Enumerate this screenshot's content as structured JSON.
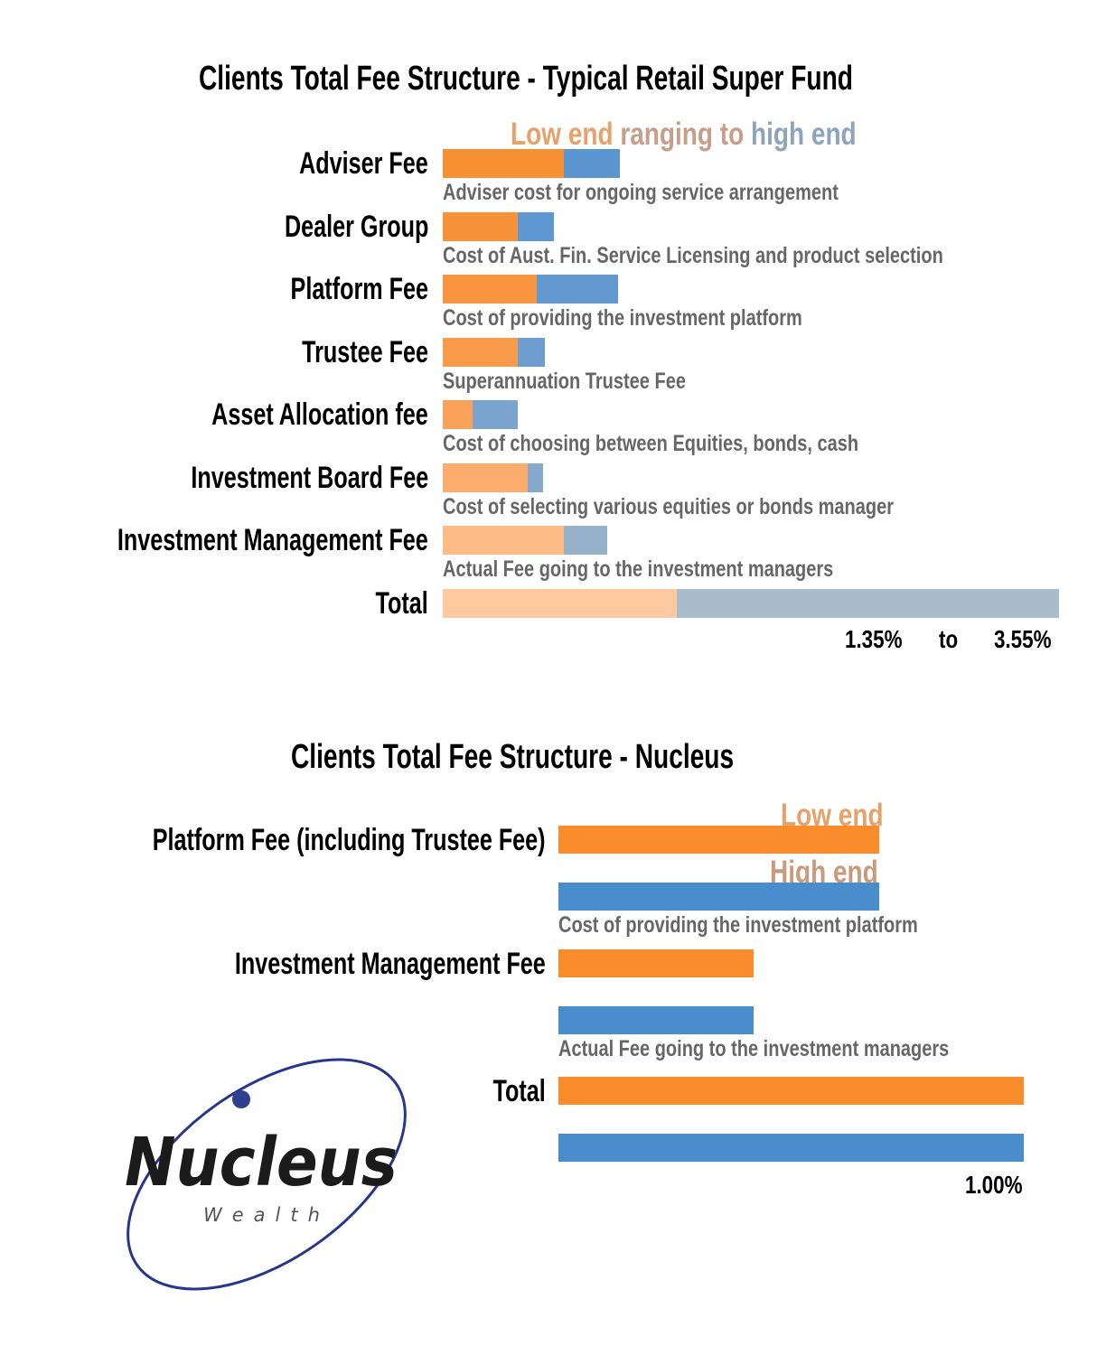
{
  "chart_data": [
    {
      "type": "bar",
      "title": "Clients Total Fee Structure - Typical Retail Super Fund",
      "legend": {
        "low_label": "Low end",
        "connector": "ranging to",
        "high_label": "high end",
        "placement": "top"
      },
      "series_colors": {
        "low": "#f78f33",
        "high": "#5b9bd5"
      },
      "axis_range_percent": [
        0,
        3.55
      ],
      "rows": [
        {
          "label": "Adviser Fee",
          "description": "Adviser cost for ongoing service arrangement",
          "low": 0.7,
          "high": 1.02,
          "low_color": "#f78f33",
          "high_color": "#5b95d0"
        },
        {
          "label": "Dealer Group",
          "description": "Cost of Aust. Fin. Service  Licensing and product selection",
          "low": 0.43,
          "high": 0.64,
          "low_color": "#f8923a",
          "high_color": "#5e98d2"
        },
        {
          "label": "Platform Fee",
          "description": "Cost of providing the investment platform",
          "low": 0.54,
          "high": 1.01,
          "low_color": "#f99440",
          "high_color": "#6499d0"
        },
        {
          "label": "Trustee Fee",
          "description": "Superannuation Trustee Fee",
          "low": 0.43,
          "high": 0.59,
          "low_color": "#fa9a4b",
          "high_color": "#6e9ecf"
        },
        {
          "label": "Asset Allocation fee",
          "description": "Cost of choosing between Equities, bonds, cash",
          "low": 0.17,
          "high": 0.43,
          "low_color": "#fba25a",
          "high_color": "#7aa4cd"
        },
        {
          "label": "Investment Board Fee",
          "description": "Cost of selecting various equities or bonds manager",
          "low": 0.49,
          "high": 0.58,
          "low_color": "#fcad6d",
          "high_color": "#86a9cb"
        },
        {
          "label": "Investment Management Fee",
          "description": "Actual Fee going to the investment managers",
          "low": 0.7,
          "high": 0.95,
          "low_color": "#fdbb87",
          "high_color": "#95b2ca"
        },
        {
          "label": "Total",
          "description": "",
          "low": 1.35,
          "high": 3.55,
          "low_color": "#fdc9a0",
          "high_color": "#a8bccc"
        }
      ],
      "total_text": {
        "low": "1.35%",
        "to": "to",
        "high": "3.55%"
      }
    },
    {
      "type": "bar",
      "title": "Clients Total Fee Structure - Nucleus",
      "series": [
        {
          "name": "Low end",
          "color": "#fb8c2c",
          "values": [
            0.69,
            0.42,
            1.0
          ]
        },
        {
          "name": "High end",
          "color": "#4a8dcc",
          "values": [
            0.69,
            0.42,
            1.0
          ]
        }
      ],
      "categories": [
        "Platform Fee (including Trustee Fee)",
        "Investment Management Fee",
        "Total"
      ],
      "descriptions": [
        "Cost of providing the investment platform",
        "Actual Fee going to the investment managers",
        ""
      ],
      "axis_range_percent": [
        0,
        1.0
      ],
      "total_text": "1.00%"
    }
  ],
  "logo": {
    "name": "Nucleus",
    "subtitle": "Wealth"
  }
}
